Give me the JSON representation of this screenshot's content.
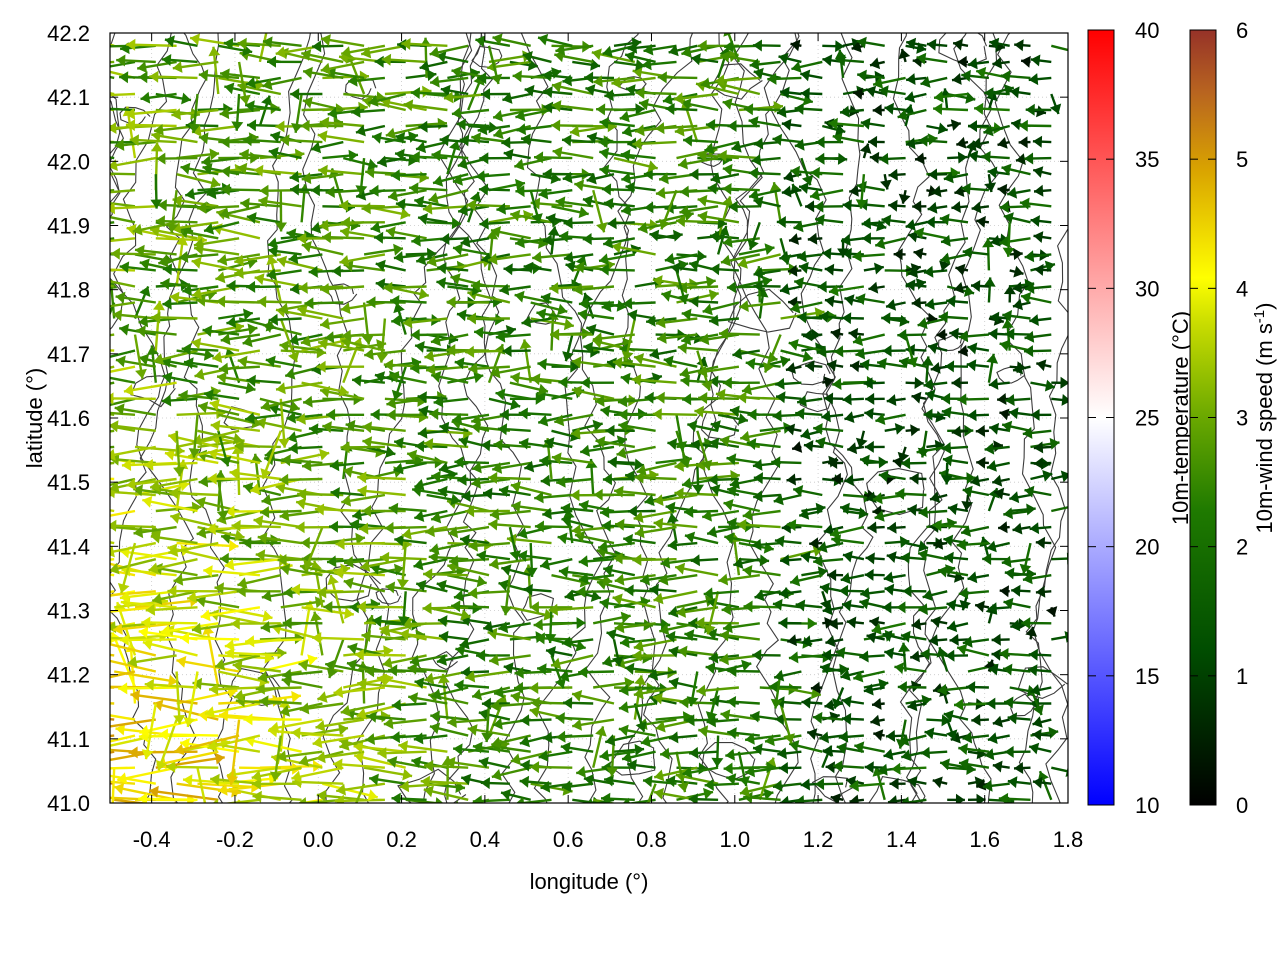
{
  "chart_data": {
    "type": "vector-field",
    "xlabel": "longitude (°)",
    "ylabel": "latitude (°)",
    "xlim": [
      -0.5,
      1.8
    ],
    "ylim": [
      41.0,
      42.2
    ],
    "xticks": [
      "-0.4",
      "-0.2",
      "0.0",
      "0.2",
      "0.4",
      "0.6",
      "0.8",
      "1.0",
      "1.2",
      "1.4",
      "1.6",
      "1.8"
    ],
    "yticks": [
      "41.0",
      "41.1",
      "41.2",
      "41.3",
      "41.4",
      "41.5",
      "41.6",
      "41.7",
      "41.8",
      "41.9",
      "42.0",
      "42.1",
      "42.2"
    ],
    "grid": true,
    "wind_field": {
      "name": "10m-wind",
      "description_units": "m s-1",
      "dominant_direction": "easterly (vectors pointing westward)",
      "speed_range": [
        0,
        6
      ],
      "strong_winds_region": "west, lon -0.5 to 0.4, lat 41.0 to 41.7 (speeds 4-6)",
      "weak_winds_region": "east and center, speeds mostly 1-3"
    },
    "contours": "terrain elevation contour lines (dark gray), no labels",
    "temperature_colorbar": {
      "label": "10m-temperature (°C)",
      "range": [
        10,
        40
      ],
      "ticks": [
        "10",
        "15",
        "20",
        "25",
        "30",
        "35",
        "40"
      ],
      "colors": [
        "#0000ff",
        "#ffffff",
        "#ff0000"
      ]
    },
    "wind_colorbar": {
      "label": "10m-wind speed (m s",
      "label_sup": "-1",
      "label_close": ")",
      "range": [
        0,
        6
      ],
      "ticks": [
        "0",
        "1",
        "2",
        "3",
        "4",
        "5",
        "6"
      ],
      "colors": [
        "#000000",
        "#006400",
        "#3c9b00",
        "#8cc000",
        "#ffff00",
        "#d2a000",
        "#c87814",
        "#963228"
      ]
    }
  }
}
